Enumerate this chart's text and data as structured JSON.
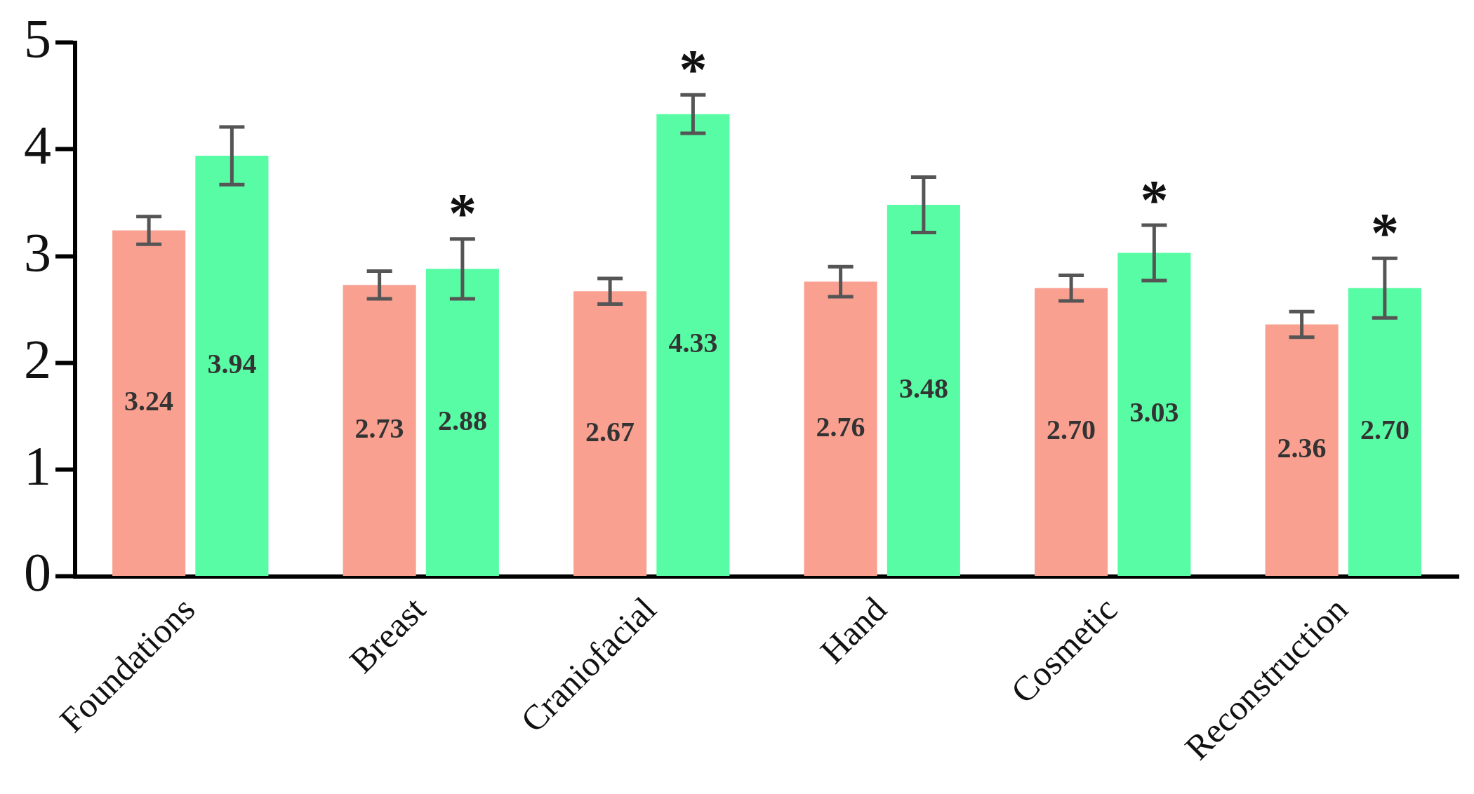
{
  "chart_data": {
    "type": "bar",
    "categories": [
      "Foundations",
      "Breast",
      "Craniofacial",
      "Hand",
      "Cosmetic",
      "Reconstruction"
    ],
    "series": [
      {
        "color": "#f9a090",
        "values": [
          3.24,
          2.73,
          2.67,
          2.76,
          2.7,
          2.36
        ],
        "errors": [
          0.13,
          0.13,
          0.12,
          0.14,
          0.12,
          0.12
        ],
        "value_labels": [
          "3.24",
          "2.73",
          "2.67",
          "2.76",
          "2.70",
          "2.36"
        ]
      },
      {
        "color": "#58fca4",
        "values": [
          3.94,
          2.88,
          4.33,
          3.48,
          3.03,
          2.7
        ],
        "errors": [
          0.27,
          0.28,
          0.18,
          0.26,
          0.26,
          0.28
        ],
        "value_labels": [
          "3.94",
          "2.88",
          "4.33",
          "3.48",
          "3.03",
          "2.70"
        ]
      }
    ],
    "ylim": [
      0,
      5
    ],
    "yticks": [
      0,
      1,
      2,
      3,
      4,
      5
    ],
    "grid": false,
    "legend": false,
    "annotations": [
      "*",
      "*",
      "*",
      "*"
    ]
  }
}
